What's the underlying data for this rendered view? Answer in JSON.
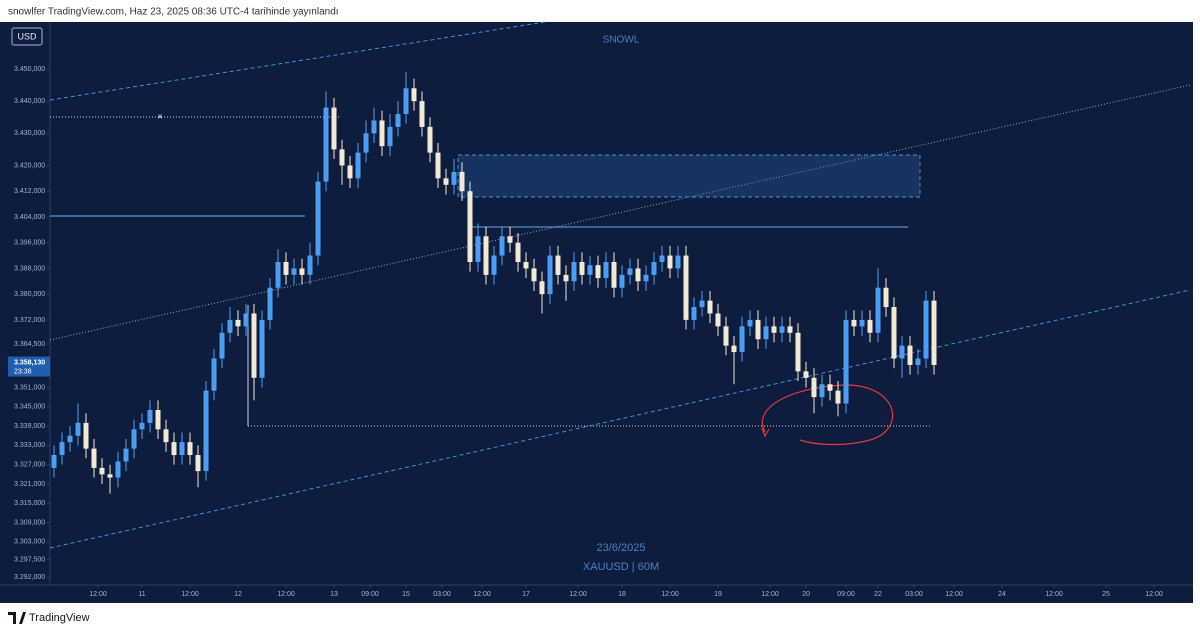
{
  "header": "snowlfer TradingView.com, Haz 23, 2025 08:36 UTC-4 tarihinde yayınlandı",
  "footer": "TradingView",
  "chart_data": {
    "type": "candlestick",
    "title": "SNOWL",
    "currency": "USD",
    "date_label": "23/6/2025",
    "symbol_label": "XAUUSD | 60M",
    "up_color": "#4a9ff5",
    "down_color": "#f3ead6",
    "ylim": [
      3289.6,
      3464.6
    ],
    "yticks": [
      {
        "value": 3450,
        "label": "3.450,000"
      },
      {
        "value": 3440,
        "label": "3.440,000"
      },
      {
        "value": 3430,
        "label": "3.430,000"
      },
      {
        "value": 3420,
        "label": "3.420,000"
      },
      {
        "value": 3412,
        "label": "3.412,000"
      },
      {
        "value": 3404,
        "label": "3.404,000"
      },
      {
        "value": 3396,
        "label": "3.396,000"
      },
      {
        "value": 3388,
        "label": "3.388,000"
      },
      {
        "value": 3380,
        "label": "3.380,000"
      },
      {
        "value": 3372,
        "label": "3.372,000"
      },
      {
        "value": 3364.5,
        "label": "3.364,500"
      },
      {
        "value": 3351,
        "label": "3.351,000"
      },
      {
        "value": 3345,
        "label": "3.345,000"
      },
      {
        "value": 3339,
        "label": "3.339,000"
      },
      {
        "value": 3333,
        "label": "3.333,000"
      },
      {
        "value": 3327,
        "label": "3.327,000"
      },
      {
        "value": 3321,
        "label": "3.321,000"
      },
      {
        "value": 3315,
        "label": "3.315,000"
      },
      {
        "value": 3309,
        "label": "3.309,000"
      },
      {
        "value": 3303,
        "label": "3.303,000"
      },
      {
        "value": 3297.5,
        "label": "3.297,500"
      },
      {
        "value": 3292,
        "label": "3.292,000"
      }
    ],
    "last_price": {
      "value": 3358.13,
      "label": "3.358,130"
    },
    "countdown": "23:38",
    "xlim": [
      0,
      285
    ],
    "xticks": [
      {
        "value": 12,
        "label": "12:00"
      },
      {
        "value": 23,
        "label": "11"
      },
      {
        "value": 35,
        "label": "12:00"
      },
      {
        "value": 47,
        "label": "12"
      },
      {
        "value": 59,
        "label": "12:00"
      },
      {
        "value": 71,
        "label": "13"
      },
      {
        "value": 80,
        "label": "09:00"
      },
      {
        "value": 89,
        "label": "15"
      },
      {
        "value": 98,
        "label": "03:00"
      },
      {
        "value": 108,
        "label": "12:00"
      },
      {
        "value": 119,
        "label": "17"
      },
      {
        "value": 132,
        "label": "12:00"
      },
      {
        "value": 143,
        "label": "18"
      },
      {
        "value": 155,
        "label": "12:00"
      },
      {
        "value": 167,
        "label": "19"
      },
      {
        "value": 180,
        "label": "12:00"
      },
      {
        "value": 189,
        "label": "20"
      },
      {
        "value": 199,
        "label": "09:00"
      },
      {
        "value": 207,
        "label": "22"
      },
      {
        "value": 216,
        "label": "03:00"
      },
      {
        "value": 226,
        "label": "12:00"
      },
      {
        "value": 238,
        "label": "24"
      },
      {
        "value": 251,
        "label": "12:00"
      },
      {
        "value": 264,
        "label": "25"
      },
      {
        "value": 276,
        "label": "12:00"
      }
    ],
    "x": [
      1,
      3,
      5,
      7,
      9,
      11,
      13,
      15,
      17,
      19,
      21,
      23,
      25,
      27,
      29,
      31,
      33,
      35,
      37,
      39,
      41,
      43,
      45,
      47,
      49,
      51,
      53,
      55,
      57,
      59,
      61,
      63,
      65,
      67,
      69,
      71,
      73,
      75,
      77,
      79,
      81,
      83,
      85,
      87,
      89,
      91,
      93,
      95,
      97,
      99,
      101,
      103,
      105,
      107,
      109,
      111,
      113,
      115,
      117,
      119,
      121,
      123,
      125,
      127,
      129,
      131,
      133,
      135,
      137,
      139,
      141,
      143,
      145,
      147,
      149,
      151,
      153,
      155,
      157,
      159,
      161,
      163,
      165,
      167,
      169,
      171,
      173,
      175,
      177,
      179,
      181,
      183,
      185,
      187,
      189,
      191,
      193,
      195,
      197,
      199,
      201,
      203,
      205,
      207,
      209,
      211,
      213,
      215,
      217,
      219,
      221
    ],
    "open": [
      3326,
      3330,
      3334,
      3336,
      3340,
      3332,
      3326,
      3324,
      3323,
      3328,
      3332,
      3338,
      3340,
      3344,
      3338,
      3334,
      3330,
      3334,
      3330,
      3325,
      3350,
      3360,
      3368,
      3372,
      3370,
      3374,
      3354,
      3372,
      3382,
      3390,
      3386,
      3388,
      3386,
      3392,
      3415,
      3438,
      3425,
      3420,
      3416,
      3424,
      3430,
      3434,
      3426,
      3432,
      3436,
      3444,
      3440,
      3432,
      3424,
      3416,
      3414,
      3418,
      3412,
      3390,
      3398,
      3386,
      3392,
      3398,
      3396,
      3390,
      3388,
      3384,
      3380,
      3392,
      3386,
      3384,
      3390,
      3386,
      3389,
      3385,
      3390,
      3382,
      3386,
      3388,
      3384,
      3386,
      3390,
      3392,
      3388,
      3392,
      3372,
      3376,
      3378,
      3374,
      3370,
      3364,
      3362,
      3370,
      3372,
      3366,
      3370,
      3368,
      3370,
      3368,
      3356,
      3354,
      3348,
      3352,
      3350,
      3346,
      3372,
      3370,
      3372,
      3368,
      3382,
      3376,
      3360,
      3364,
      3358,
      3360,
      3378
    ],
    "high": [
      3333,
      3337,
      3339,
      3346,
      3343,
      3335,
      3329,
      3327,
      3331,
      3335,
      3341,
      3343,
      3347,
      3347,
      3341,
      3337,
      3337,
      3337,
      3333,
      3353,
      3363,
      3371,
      3376,
      3375,
      3377,
      3377,
      3375,
      3385,
      3394,
      3393,
      3391,
      3391,
      3396,
      3418,
      3443,
      3441,
      3428,
      3423,
      3427,
      3434,
      3438,
      3437,
      3436,
      3440,
      3449,
      3447,
      3443,
      3435,
      3427,
      3419,
      3422,
      3421,
      3415,
      3402,
      3401,
      3395,
      3401,
      3401,
      3399,
      3393,
      3391,
      3387,
      3395,
      3395,
      3389,
      3393,
      3393,
      3392,
      3392,
      3393,
      3393,
      3389,
      3391,
      3391,
      3389,
      3393,
      3395,
      3395,
      3395,
      3395,
      3379,
      3381,
      3381,
      3377,
      3373,
      3367,
      3373,
      3375,
      3375,
      3373,
      3373,
      3373,
      3373,
      3371,
      3359,
      3357,
      3355,
      3355,
      3353,
      3375,
      3375,
      3375,
      3375,
      3388,
      3385,
      3379,
      3367,
      3367,
      3363,
      3381,
      3381
    ],
    "low": [
      3323,
      3327,
      3331,
      3333,
      3329,
      3323,
      3321,
      3318,
      3320,
      3325,
      3329,
      3335,
      3337,
      3335,
      3331,
      3327,
      3327,
      3327,
      3320,
      3322,
      3347,
      3357,
      3365,
      3367,
      3367,
      3347,
      3351,
      3369,
      3379,
      3383,
      3383,
      3383,
      3383,
      3389,
      3412,
      3422,
      3414,
      3413,
      3413,
      3421,
      3427,
      3423,
      3423,
      3429,
      3433,
      3437,
      3429,
      3421,
      3413,
      3411,
      3411,
      3409,
      3387,
      3387,
      3383,
      3383,
      3389,
      3393,
      3387,
      3385,
      3381,
      3374,
      3377,
      3383,
      3378,
      3381,
      3383,
      3383,
      3382,
      3382,
      3379,
      3379,
      3383,
      3381,
      3381,
      3383,
      3387,
      3385,
      3385,
      3369,
      3369,
      3373,
      3371,
      3367,
      3361,
      3352,
      3359,
      3367,
      3363,
      3363,
      3365,
      3365,
      3365,
      3353,
      3351,
      3343,
      3345,
      3347,
      3342,
      3343,
      3367,
      3367,
      3365,
      3365,
      3373,
      3357,
      3354,
      3355,
      3355,
      3357,
      3355
    ],
    "close": [
      3330,
      3334,
      3336,
      3340,
      3332,
      3326,
      3324,
      3323,
      3328,
      3332,
      3338,
      3340,
      3344,
      3338,
      3334,
      3330,
      3334,
      3330,
      3325,
      3350,
      3360,
      3368,
      3372,
      3370,
      3374,
      3354,
      3372,
      3382,
      3390,
      3386,
      3388,
      3386,
      3392,
      3415,
      3438,
      3425,
      3420,
      3416,
      3424,
      3430,
      3434,
      3426,
      3432,
      3436,
      3444,
      3440,
      3432,
      3424,
      3416,
      3414,
      3418,
      3412,
      3390,
      3398,
      3386,
      3392,
      3398,
      3396,
      3390,
      3388,
      3384,
      3380,
      3392,
      3386,
      3384,
      3390,
      3386,
      3389,
      3385,
      3390,
      3382,
      3386,
      3388,
      3384,
      3386,
      3390,
      3392,
      3388,
      3392,
      3372,
      3376,
      3378,
      3374,
      3370,
      3364,
      3362,
      3370,
      3372,
      3366,
      3370,
      3368,
      3370,
      3368,
      3356,
      3354,
      3348,
      3352,
      3350,
      3346,
      3372,
      3370,
      3372,
      3368,
      3382,
      3376,
      3360,
      3364,
      3358,
      3360,
      3378,
      3358
    ]
  }
}
